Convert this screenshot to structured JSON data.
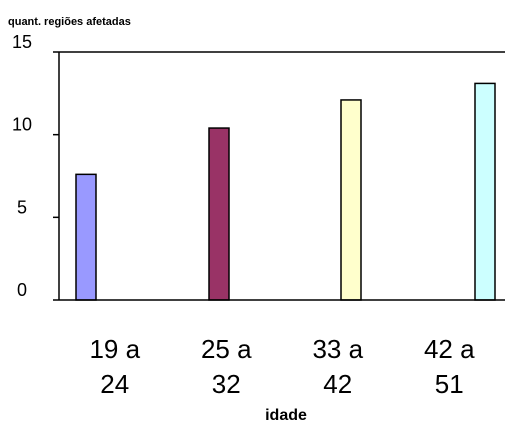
{
  "chart_data": {
    "type": "bar",
    "title": "",
    "ylabel": "quant. regiões afetadas",
    "xlabel": "idade",
    "ylim": [
      0,
      15
    ],
    "yticks": [
      0,
      5,
      10,
      15
    ],
    "grid": false,
    "categories": [
      {
        "line1": "19 a",
        "line2": "24"
      },
      {
        "line1": "25 a",
        "line2": "32"
      },
      {
        "line1": "33 a",
        "line2": "42"
      },
      {
        "line1": "42 a",
        "line2": "51"
      }
    ],
    "values": [
      7.6,
      10.4,
      12.1,
      13.1
    ],
    "colors": [
      "#9999ff",
      "#993366",
      "#ffffcc",
      "#ccffff"
    ]
  }
}
